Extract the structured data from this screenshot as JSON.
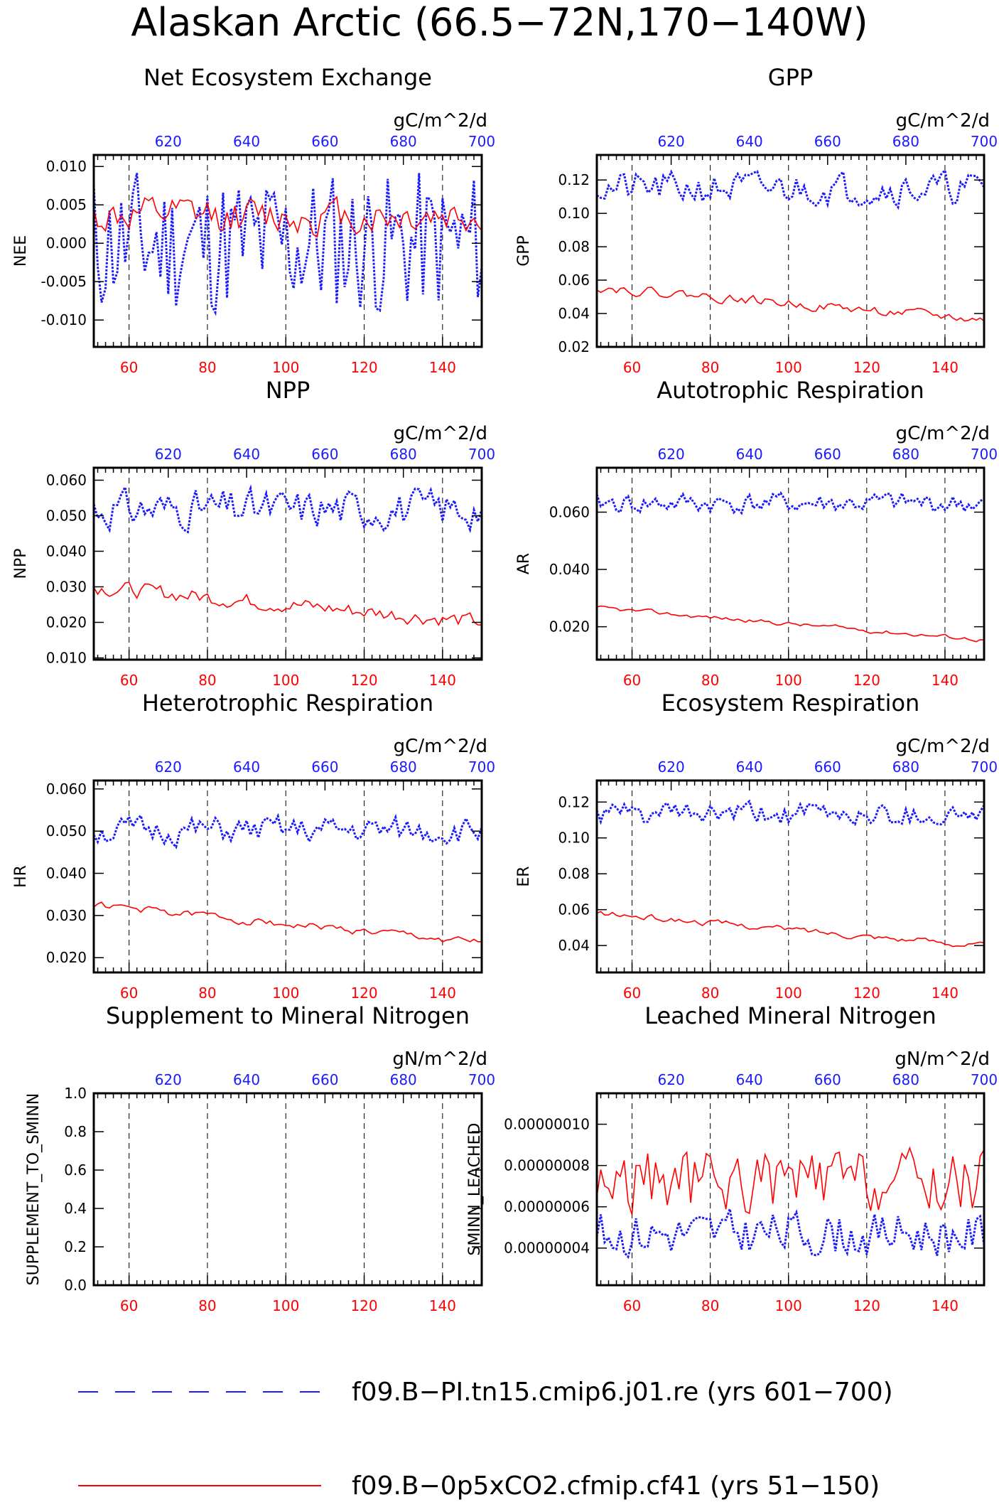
{
  "title": "Alaskan Arctic (66.5−72N,170−140W)",
  "colors": {
    "control": "#1a1aff",
    "experiment": "#ff0000",
    "axis": "#000000",
    "grid": "#000000"
  },
  "axes": {
    "bottom_range": [
      51,
      150
    ],
    "bottom_ticks": [
      "60",
      "80",
      "100",
      "120",
      "140"
    ],
    "top_range": [
      601,
      700
    ],
    "top_ticks": [
      "620",
      "640",
      "660",
      "680",
      "700"
    ]
  },
  "legend": {
    "items": [
      {
        "label": "f09.B−PI.tn15.cmip6.j01.re (yrs 601−700)",
        "style": "dashed",
        "color": "#1a1aff"
      },
      {
        "label": "f09.B−0p5xCO2.cfmip.cf41 (yrs 51−150)",
        "style": "solid",
        "color": "#ff0000"
      }
    ]
  },
  "chart_data": [
    {
      "type": "line",
      "title": "Net Ecosystem Exchange",
      "ylabel": "NEE",
      "units": "gC/m^2/d",
      "ylim": [
        -0.0135,
        0.0115
      ],
      "yticks": [
        "0.010",
        "0.005",
        "0.000",
        "-0.005",
        "-0.010"
      ],
      "ytick_values": [
        0.01,
        0.005,
        0,
        -0.005,
        -0.01
      ],
      "series": [
        {
          "name": "f09.B−PI.tn15.cmip6.j01.re (yrs 601−700)",
          "mean": 0.0,
          "amp": 0.0065,
          "wig": 0.9,
          "trend": 0,
          "seed": 11
        },
        {
          "name": "f09.B−0p5xCO2.cfmip.cf41 (yrs 51−150)",
          "mean": 0.0035,
          "amp": 0.0022,
          "wig": 0.6,
          "trend": 0,
          "seed": 12
        }
      ]
    },
    {
      "type": "line",
      "title": "GPP",
      "ylabel": "GPP",
      "units": "gC/m^2/d",
      "ylim": [
        0.02,
        0.135
      ],
      "yticks": [
        "0.12",
        "0.10",
        "0.08",
        "0.06",
        "0.04",
        "0.02"
      ],
      "ytick_values": [
        0.12,
        0.1,
        0.08,
        0.06,
        0.04,
        0.02
      ],
      "series": [
        {
          "name": "f09.B−PI.tn15.cmip6.j01.re (yrs 601−700)",
          "mean": 0.115,
          "amp": 0.008,
          "wig": 0.7,
          "trend": 0,
          "seed": 21
        },
        {
          "name": "f09.B−0p5xCO2.cfmip.cf41 (yrs 51−150)",
          "mean": 0.046,
          "amp": 0.003,
          "wig": 0.5,
          "trend": -0.02,
          "seed": 22
        }
      ]
    },
    {
      "type": "line",
      "title": "NPP",
      "ylabel": "NPP",
      "units": "gC/m^2/d",
      "ylim": [
        0.0095,
        0.0635
      ],
      "yticks": [
        "0.060",
        "0.050",
        "0.040",
        "0.030",
        "0.020",
        "0.010"
      ],
      "ytick_values": [
        0.06,
        0.05,
        0.04,
        0.03,
        0.02,
        0.01
      ],
      "series": [
        {
          "name": "f09.B−PI.tn15.cmip6.j01.re (yrs 601−700)",
          "mean": 0.052,
          "amp": 0.0045,
          "wig": 0.7,
          "trend": 0,
          "seed": 31
        },
        {
          "name": "f09.B−0p5xCO2.cfmip.cf41 (yrs 51−150)",
          "mean": 0.025,
          "amp": 0.002,
          "wig": 0.6,
          "trend": -0.01,
          "seed": 32
        }
      ]
    },
    {
      "type": "line",
      "title": "Autotrophic Respiration",
      "ylabel": "AR",
      "units": "gC/m^2/d",
      "ylim": [
        0.0085,
        0.0755
      ],
      "yticks": [
        "0.060",
        "0.040",
        "0.020"
      ],
      "ytick_values": [
        0.06,
        0.04,
        0.02
      ],
      "series": [
        {
          "name": "f09.B−PI.tn15.cmip6.j01.re (yrs 601−700)",
          "mean": 0.063,
          "amp": 0.0035,
          "wig": 0.6,
          "trend": 0,
          "seed": 41
        },
        {
          "name": "f09.B−0p5xCO2.cfmip.cf41 (yrs 51−150)",
          "mean": 0.021,
          "amp": 0.001,
          "wig": 0.4,
          "trend": -0.011,
          "seed": 42
        }
      ]
    },
    {
      "type": "line",
      "title": "Heterotrophic Respiration",
      "ylabel": "HR",
      "units": "gC/m^2/d",
      "ylim": [
        0.0165,
        0.062
      ],
      "yticks": [
        "0.060",
        "0.050",
        "0.040",
        "0.030",
        "0.020"
      ],
      "ytick_values": [
        0.06,
        0.05,
        0.04,
        0.03,
        0.02
      ],
      "series": [
        {
          "name": "f09.B−PI.tn15.cmip6.j01.re (yrs 601−700)",
          "mean": 0.05,
          "amp": 0.003,
          "wig": 0.6,
          "trend": 0,
          "seed": 51
        },
        {
          "name": "f09.B−0p5xCO2.cfmip.cf41 (yrs 51−150)",
          "mean": 0.028,
          "amp": 0.0012,
          "wig": 0.4,
          "trend": -0.009,
          "seed": 52
        }
      ]
    },
    {
      "type": "line",
      "title": "Ecosystem Respiration",
      "ylabel": "ER",
      "units": "gC/m^2/d",
      "ylim": [
        0.025,
        0.132
      ],
      "yticks": [
        "0.12",
        "0.10",
        "0.08",
        "0.06",
        "0.04"
      ],
      "ytick_values": [
        0.12,
        0.1,
        0.08,
        0.06,
        0.04
      ],
      "series": [
        {
          "name": "f09.B−PI.tn15.cmip6.j01.re (yrs 601−700)",
          "mean": 0.113,
          "amp": 0.006,
          "wig": 0.6,
          "trend": 0,
          "seed": 61
        },
        {
          "name": "f09.B−0p5xCO2.cfmip.cf41 (yrs 51−150)",
          "mean": 0.049,
          "amp": 0.002,
          "wig": 0.45,
          "trend": -0.018,
          "seed": 62
        }
      ]
    },
    {
      "type": "line",
      "title": "Supplement to Mineral Nitrogen",
      "ylabel": "SUPPLEMENT_TO_SMINN",
      "units": "gN/m^2/d",
      "ylim": [
        0,
        1
      ],
      "yticks": [
        "1.0",
        "0.8",
        "0.6",
        "0.4",
        "0.2",
        "0.0"
      ],
      "ytick_values": [
        1,
        0.8,
        0.6,
        0.4,
        0.2,
        0
      ],
      "series": []
    },
    {
      "type": "line",
      "title": "Leached Mineral Nitrogen",
      "ylabel": "SMINN_LEACHED",
      "units": "gN/m^2/d",
      "ylim": [
        2.2e-08,
        1.15e-07
      ],
      "yticks": [
        "0.00000010",
        "0.00000008",
        "0.00000006",
        "0.00000004"
      ],
      "ytick_values": [
        1e-07,
        8e-08,
        6e-08,
        4e-08
      ],
      "series": [
        {
          "name": "f09.B−PI.tn15.cmip6.j01.re (yrs 601−700)",
          "mean": 4.7e-08,
          "amp": 9e-09,
          "wig": 0.7,
          "trend": 0,
          "seed": 81
        },
        {
          "name": "f09.B−0p5xCO2.cfmip.cf41 (yrs 51−150)",
          "mean": 7.2e-08,
          "amp": 1.3e-08,
          "wig": 0.7,
          "trend": 0,
          "seed": 82
        }
      ]
    }
  ]
}
